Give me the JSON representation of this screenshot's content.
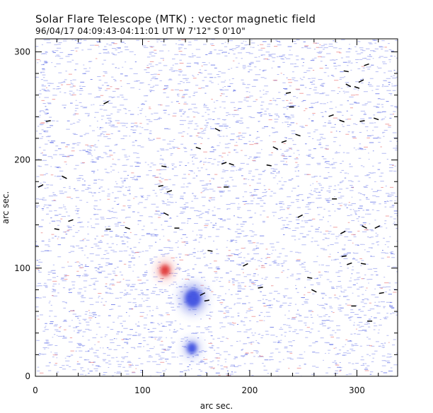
{
  "header": {
    "title": "Solar Flare Telescope (MTK) : vector magnetic field",
    "subtitle": "96/04/17   04:09:43-04:11:01 UT      W 7'12\"   S 0'10\""
  },
  "chart_data": {
    "type": "scatter",
    "xlabel": "arc sec.",
    "ylabel": "arc sec.",
    "xlim": [
      0,
      338
    ],
    "ylim": [
      0,
      312
    ],
    "x_ticks": [
      0,
      100,
      200,
      300
    ],
    "y_ticks": [
      0,
      100,
      200,
      300
    ],
    "colors": {
      "positive_polarity": "#e03030",
      "negative_polarity": "#3a4de0",
      "transverse_vectors": "#000000",
      "frame": "#000000"
    },
    "polarity_patches": [
      {
        "polarity": "positive",
        "x": 121,
        "y": 98,
        "extent": 6
      },
      {
        "polarity": "negative",
        "x": 147,
        "y": 72,
        "extent": 10
      },
      {
        "polarity": "negative",
        "x": 146,
        "y": 26,
        "extent": 6
      }
    ],
    "vectors": [
      [
        5,
        176
      ],
      [
        12,
        236
      ],
      [
        20,
        136
      ],
      [
        27,
        184
      ],
      [
        33,
        144
      ],
      [
        68,
        136
      ],
      [
        86,
        137
      ],
      [
        66,
        253
      ],
      [
        117,
        176
      ],
      [
        120,
        194
      ],
      [
        122,
        150
      ],
      [
        125,
        171
      ],
      [
        132,
        137
      ],
      [
        152,
        211
      ],
      [
        156,
        76
      ],
      [
        160,
        70
      ],
      [
        163,
        116
      ],
      [
        170,
        228
      ],
      [
        176,
        197
      ],
      [
        178,
        175
      ],
      [
        183,
        196
      ],
      [
        196,
        103
      ],
      [
        210,
        82
      ],
      [
        218,
        195
      ],
      [
        224,
        211
      ],
      [
        232,
        217
      ],
      [
        239,
        249
      ],
      [
        245,
        223
      ],
      [
        247,
        148
      ],
      [
        236,
        262
      ],
      [
        256,
        91
      ],
      [
        260,
        79
      ],
      [
        276,
        241
      ],
      [
        279,
        164
      ],
      [
        286,
        236
      ],
      [
        287,
        133
      ],
      [
        288,
        111
      ],
      [
        290,
        282
      ],
      [
        292,
        269
      ],
      [
        293,
        104
      ],
      [
        297,
        65
      ],
      [
        300,
        267
      ],
      [
        304,
        273
      ],
      [
        305,
        236
      ],
      [
        306,
        104
      ],
      [
        307,
        138
      ],
      [
        309,
        288
      ],
      [
        312,
        51
      ],
      [
        318,
        238
      ],
      [
        319,
        138
      ],
      [
        323,
        77
      ]
    ]
  }
}
